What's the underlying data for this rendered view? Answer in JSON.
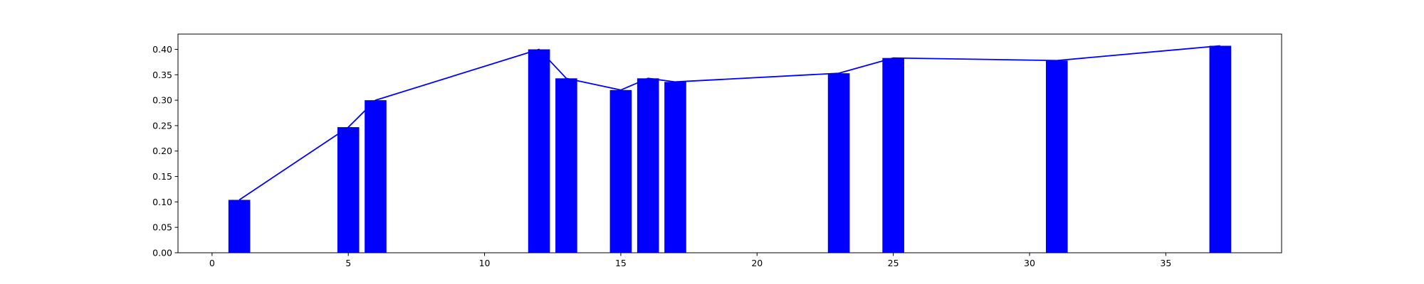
{
  "chart_data": {
    "type": "bar",
    "x": [
      1,
      5,
      6,
      12,
      13,
      15,
      16,
      17,
      23,
      25,
      31,
      37
    ],
    "values": [
      0.104,
      0.247,
      0.3,
      0.4,
      0.343,
      0.32,
      0.343,
      0.336,
      0.353,
      0.383,
      0.378,
      0.407
    ],
    "overlay": {
      "type": "line",
      "x": [
        1,
        5,
        6,
        12,
        13,
        15,
        16,
        17,
        23,
        25,
        31,
        37
      ],
      "values": [
        0.104,
        0.247,
        0.3,
        0.4,
        0.343,
        0.32,
        0.343,
        0.336,
        0.353,
        0.383,
        0.378,
        0.407
      ]
    },
    "bar_width": 0.8,
    "xlim": [
      -1.25,
      39.25
    ],
    "ylim": [
      0,
      0.43
    ],
    "x_ticks": [
      0,
      5,
      10,
      15,
      20,
      25,
      30,
      35
    ],
    "y_ticks": [
      0.0,
      0.05,
      0.1,
      0.15,
      0.2,
      0.25,
      0.3,
      0.35,
      0.4
    ],
    "x_tick_labels": [
      "0",
      "5",
      "10",
      "15",
      "20",
      "25",
      "30",
      "35"
    ],
    "y_tick_labels": [
      "0.00",
      "0.05",
      "0.10",
      "0.15",
      "0.20",
      "0.25",
      "0.30",
      "0.35",
      "0.40"
    ],
    "title": "",
    "xlabel": "",
    "ylabel": "",
    "grid": false,
    "bar_color": "#0000ff",
    "line_color": "#0000ff"
  }
}
